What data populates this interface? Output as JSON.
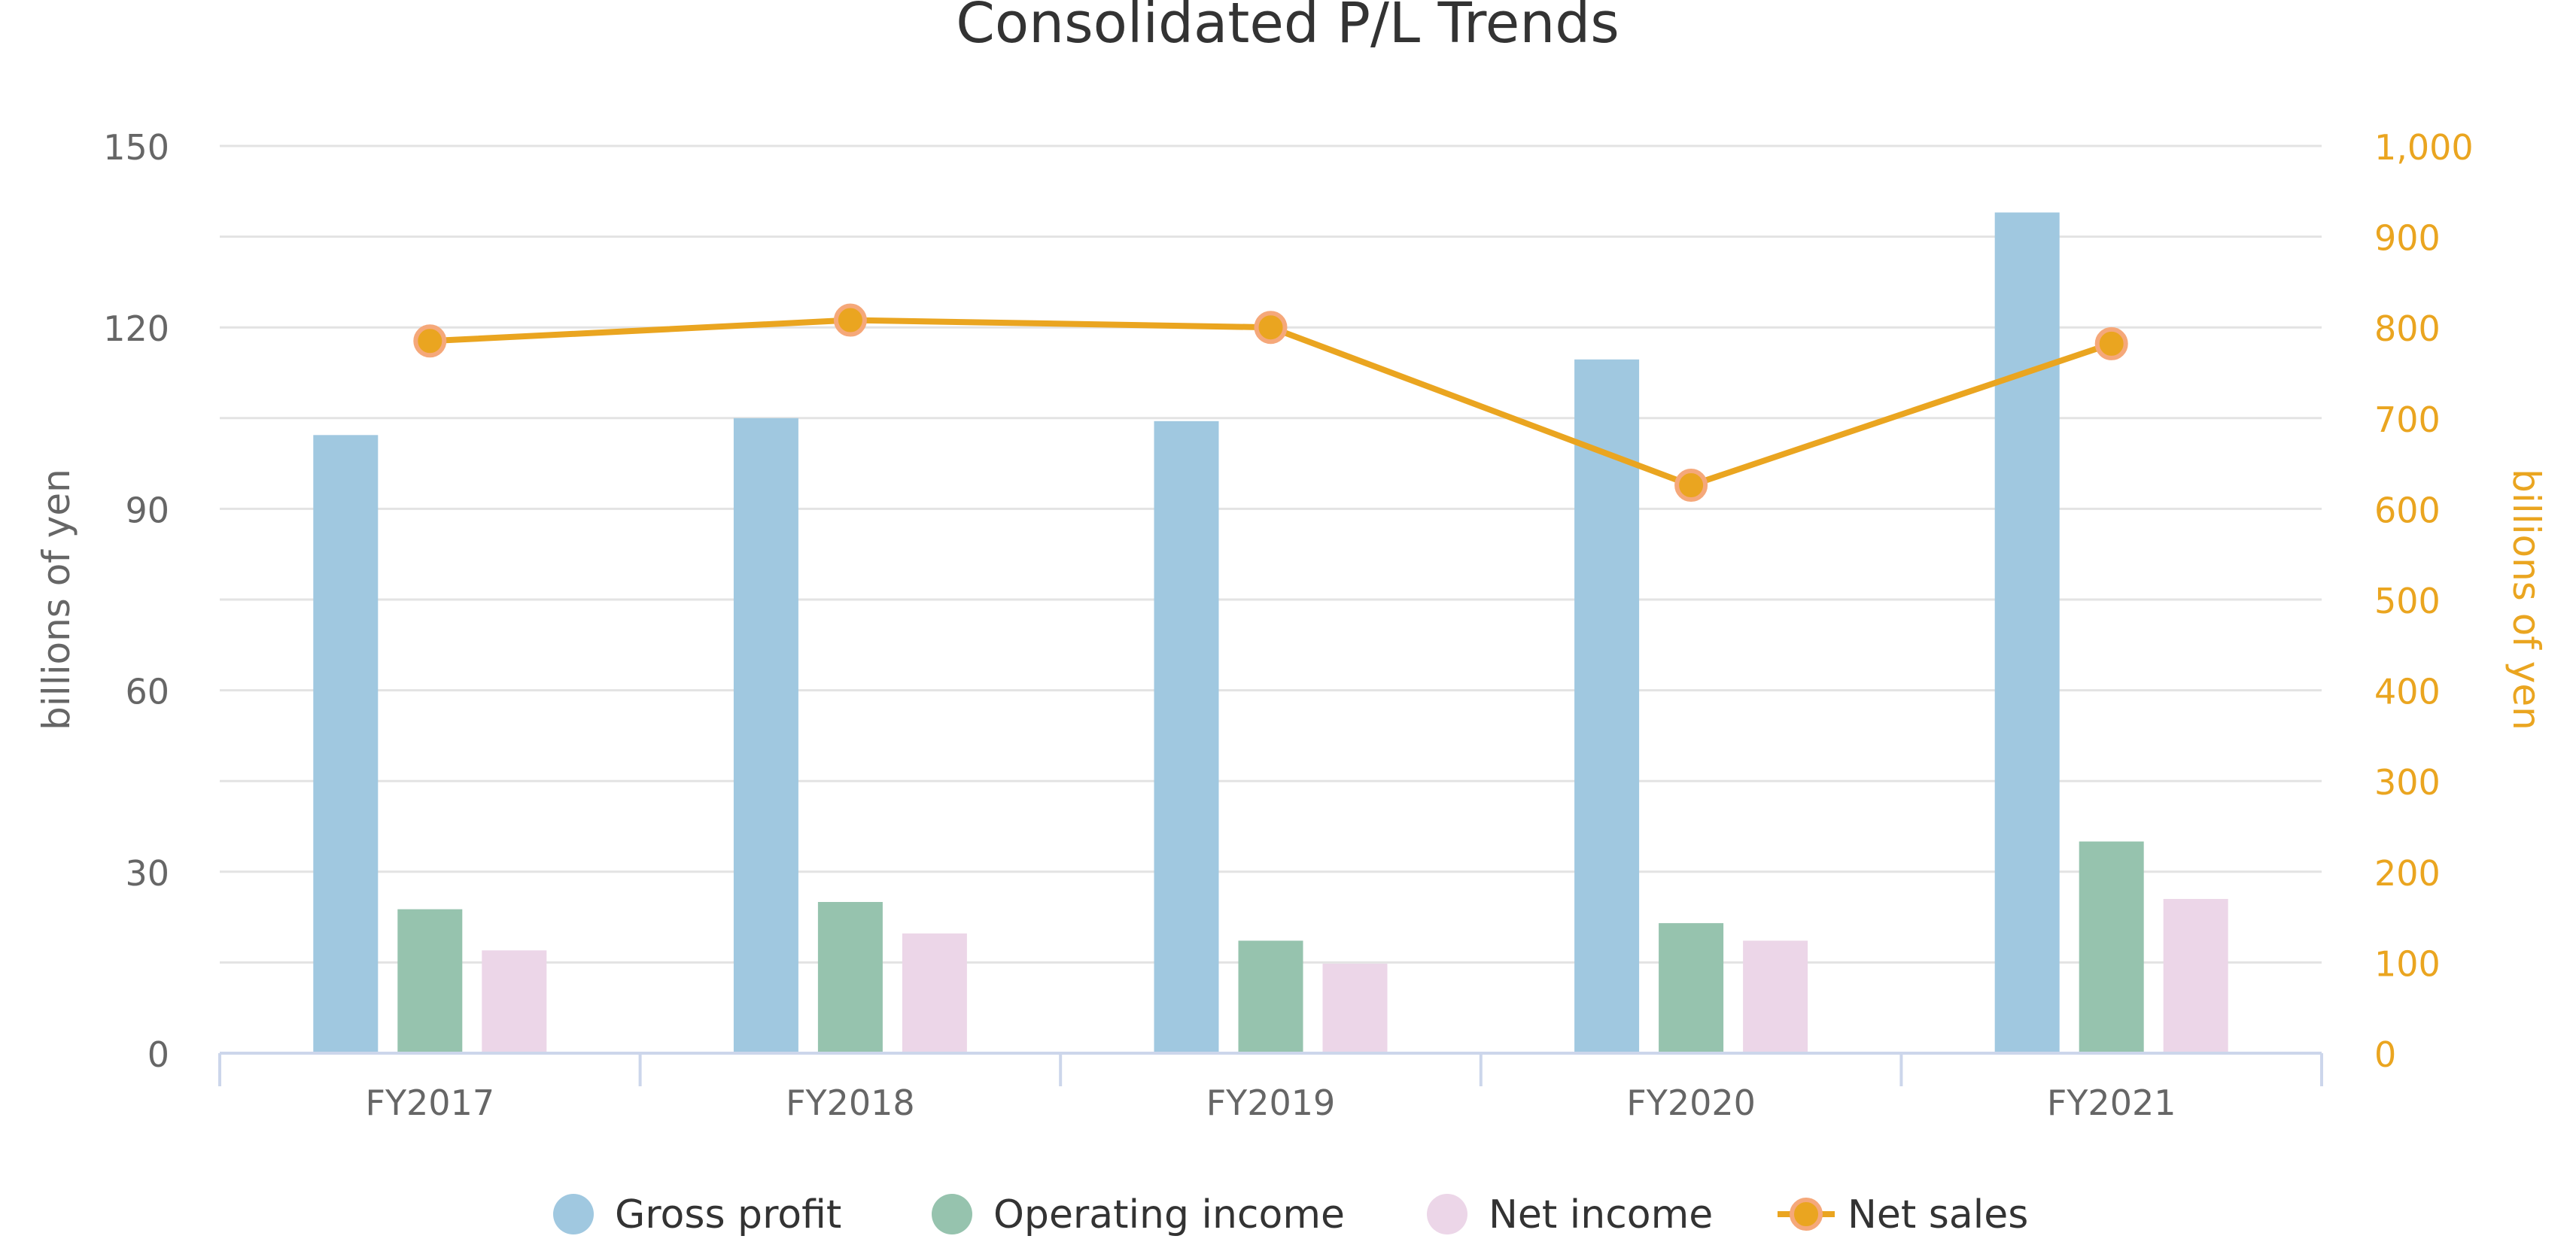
{
  "chart_data": {
    "type": "bar",
    "title": "Consolidated P/L Trends",
    "categories": [
      "FY2017",
      "FY2018",
      "FY2019",
      "FY2020",
      "FY2021"
    ],
    "series": [
      {
        "name": "Gross profit",
        "type": "bar",
        "axis": "left",
        "color": "#a0c8e0",
        "values": [
          102.2,
          105.0,
          104.5,
          114.7,
          139.0
        ]
      },
      {
        "name": "Operating income",
        "type": "bar",
        "axis": "left",
        "color": "#96c3ae",
        "values": [
          23.8,
          25.0,
          18.6,
          21.5,
          35.0
        ]
      },
      {
        "name": "Net income",
        "type": "bar",
        "axis": "left",
        "color": "#ecd6e8",
        "values": [
          17.0,
          19.8,
          14.8,
          18.6,
          25.5
        ]
      },
      {
        "name": "Net sales",
        "type": "line",
        "axis": "right",
        "color": "#eaa520",
        "values": [
          785,
          808,
          800,
          626,
          782
        ]
      }
    ],
    "y_left": {
      "label": "billions of yen",
      "ylim": [
        0,
        150
      ],
      "ticks": [
        "0",
        "30",
        "60",
        "90",
        "120",
        "150"
      ],
      "tick_values": [
        0,
        30,
        60,
        90,
        120,
        150
      ]
    },
    "y_right": {
      "label": "billions of yen",
      "ylim": [
        0,
        1000
      ],
      "ticks": [
        "0",
        "100",
        "200",
        "300",
        "400",
        "500",
        "600",
        "700",
        "800",
        "900",
        "1,000"
      ],
      "tick_values": [
        0,
        100,
        200,
        300,
        400,
        500,
        600,
        700,
        800,
        900,
        1000
      ],
      "color": "#eaa520"
    },
    "grid": true,
    "legend_position": "bottom-center"
  }
}
